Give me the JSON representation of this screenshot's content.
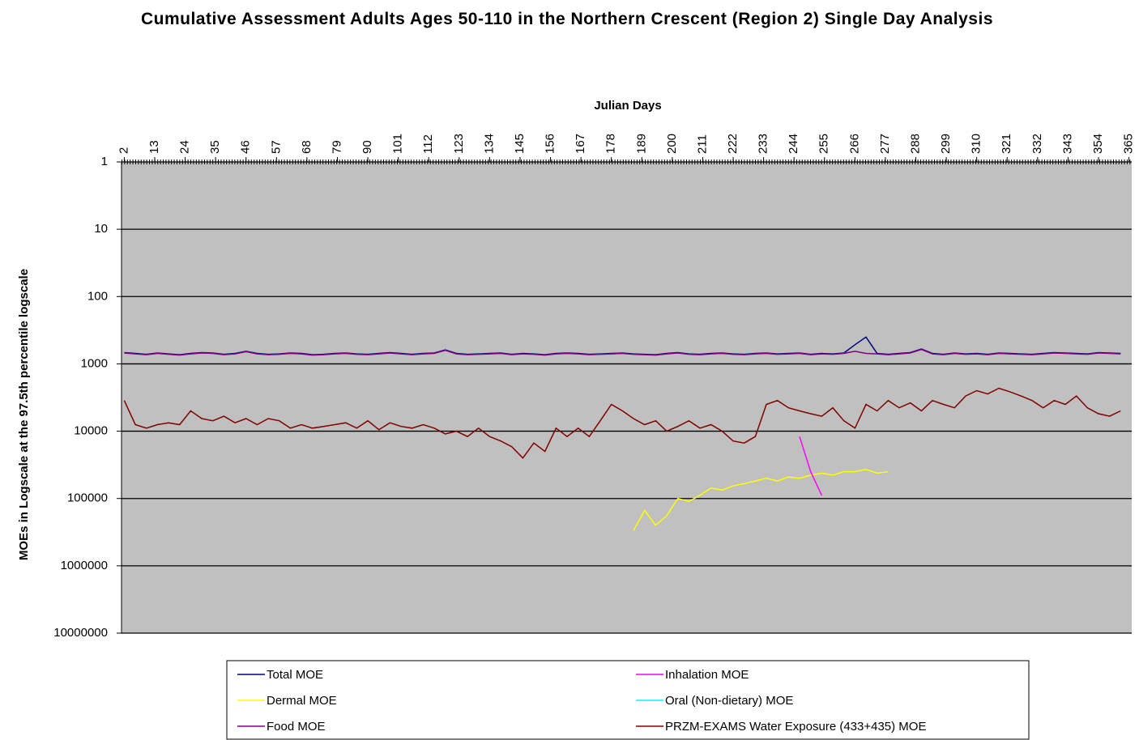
{
  "chart_data": {
    "type": "line",
    "title": "Cumulative Assessment Adults Ages 50-110 in the Northern Crescent (Region 2) Single Day Analysis",
    "x_label": "Julian Days",
    "y_label": "MOEs in Logscale at the 97.5th percentile logscale",
    "xlim": [
      1,
      366
    ],
    "xticks": [
      2,
      13,
      24,
      35,
      46,
      57,
      68,
      79,
      90,
      101,
      112,
      123,
      134,
      145,
      156,
      167,
      178,
      189,
      200,
      211,
      222,
      233,
      244,
      255,
      266,
      277,
      288,
      299,
      310,
      321,
      332,
      343,
      354,
      365
    ],
    "ylim": [
      1,
      10000000
    ],
    "yticks": [
      1,
      10,
      100,
      1000,
      10000,
      100000,
      1000000,
      10000000
    ],
    "log_y": true,
    "y_inverted": true,
    "x_axis_position": "top",
    "grid": true,
    "legend": "bottom",
    "x": [
      2,
      6,
      10,
      14,
      18,
      22,
      26,
      30,
      34,
      38,
      42,
      46,
      50,
      54,
      58,
      62,
      66,
      70,
      74,
      78,
      82,
      86,
      90,
      94,
      98,
      102,
      106,
      110,
      114,
      118,
      122,
      126,
      130,
      134,
      138,
      142,
      146,
      150,
      154,
      158,
      162,
      166,
      170,
      174,
      178,
      182,
      186,
      190,
      194,
      198,
      202,
      206,
      210,
      214,
      218,
      222,
      226,
      230,
      234,
      238,
      242,
      246,
      250,
      254,
      258,
      262,
      266,
      270,
      274,
      278,
      282,
      286,
      290,
      294,
      298,
      302,
      306,
      310,
      314,
      318,
      322,
      326,
      330,
      334,
      338,
      342,
      346,
      350,
      354,
      358,
      362
    ],
    "series": [
      {
        "name": "Total MOE",
        "color": "#000080",
        "values": [
          680,
          700,
          720,
          690,
          710,
          730,
          700,
          680,
          690,
          720,
          700,
          650,
          700,
          720,
          710,
          690,
          700,
          730,
          720,
          700,
          690,
          710,
          720,
          700,
          680,
          700,
          720,
          700,
          690,
          620,
          700,
          720,
          710,
          700,
          690,
          720,
          700,
          710,
          730,
          700,
          690,
          700,
          720,
          710,
          700,
          690,
          710,
          720,
          730,
          700,
          680,
          710,
          720,
          700,
          690,
          710,
          720,
          700,
          690,
          710,
          700,
          690,
          720,
          700,
          710,
          690,
          520,
          400,
          700,
          720,
          700,
          680,
          600,
          700,
          720,
          690,
          710,
          700,
          720,
          690,
          700,
          710,
          720,
          700,
          680,
          690,
          700,
          710,
          680,
          690,
          700
        ]
      },
      {
        "name": "Dermal MOE",
        "color": "#ffff00",
        "values": [
          null,
          null,
          null,
          null,
          null,
          null,
          null,
          null,
          null,
          null,
          null,
          null,
          null,
          null,
          null,
          null,
          null,
          null,
          null,
          null,
          null,
          null,
          null,
          null,
          null,
          null,
          null,
          null,
          null,
          null,
          null,
          null,
          null,
          null,
          null,
          null,
          null,
          null,
          null,
          null,
          null,
          null,
          null,
          null,
          null,
          null,
          300000,
          150000,
          250000,
          180000,
          100000,
          110000,
          90000,
          70000,
          75000,
          65000,
          60000,
          55000,
          50000,
          55000,
          48000,
          50000,
          45000,
          42000,
          45000,
          40000,
          40000,
          37000,
          42000,
          40000,
          null,
          null,
          null,
          null,
          null,
          null,
          null,
          null,
          null,
          null,
          null,
          null,
          null,
          null,
          null,
          null,
          null,
          null,
          null,
          null,
          null
        ]
      },
      {
        "name": "Food MOE",
        "color": "#800080",
        "values": [
          690,
          710,
          730,
          700,
          720,
          740,
          710,
          690,
          700,
          730,
          710,
          660,
          710,
          730,
          720,
          700,
          710,
          740,
          730,
          710,
          700,
          720,
          730,
          710,
          690,
          710,
          730,
          710,
          700,
          630,
          710,
          730,
          720,
          710,
          700,
          730,
          710,
          720,
          740,
          710,
          700,
          710,
          730,
          720,
          710,
          700,
          720,
          730,
          740,
          710,
          690,
          720,
          730,
          710,
          700,
          720,
          730,
          710,
          700,
          720,
          710,
          700,
          730,
          710,
          720,
          700,
          650,
          700,
          710,
          730,
          710,
          690,
          610,
          710,
          730,
          700,
          720,
          710,
          730,
          700,
          710,
          720,
          730,
          710,
          690,
          700,
          710,
          720,
          690,
          700,
          710
        ]
      },
      {
        "name": "Inhalation MOE",
        "color": "#ff00ff",
        "values": [
          null,
          null,
          null,
          null,
          null,
          null,
          null,
          null,
          null,
          null,
          null,
          null,
          null,
          null,
          null,
          null,
          null,
          null,
          null,
          null,
          null,
          null,
          null,
          null,
          null,
          null,
          null,
          null,
          null,
          null,
          null,
          null,
          null,
          null,
          null,
          null,
          null,
          null,
          null,
          null,
          null,
          null,
          null,
          null,
          null,
          null,
          null,
          null,
          null,
          null,
          null,
          null,
          null,
          null,
          null,
          null,
          null,
          null,
          null,
          null,
          null,
          12000,
          40000,
          90000,
          null,
          null,
          null,
          null,
          null,
          null,
          null,
          null,
          null,
          null,
          null,
          null,
          null,
          null,
          null,
          null,
          null,
          null,
          null,
          null,
          null,
          null,
          null,
          null,
          null,
          null,
          null
        ]
      },
      {
        "name": "Oral (Non-dietary) MOE",
        "color": "#00ffff",
        "values": [
          null,
          null,
          null,
          null,
          null,
          null,
          null,
          null,
          null,
          null,
          null,
          null,
          null,
          null,
          null,
          null,
          null,
          null,
          null,
          null,
          null,
          null,
          null,
          null,
          null,
          null,
          null,
          null,
          null,
          null,
          null,
          null,
          null,
          null,
          null,
          null,
          null,
          null,
          null,
          null,
          null,
          null,
          null,
          null,
          null,
          null,
          null,
          null,
          null,
          null,
          null,
          null,
          null,
          null,
          null,
          null,
          null,
          null,
          null,
          null,
          null,
          null,
          null,
          null,
          null,
          null,
          null,
          null,
          null,
          null,
          null,
          null,
          null,
          null,
          null,
          null,
          null,
          null,
          null,
          null,
          null,
          null,
          null,
          null,
          null,
          null,
          null,
          null,
          null,
          null,
          null
        ]
      },
      {
        "name": "PRZM-EXAMS Water Exposure (433+435) MOE",
        "color": "#800000",
        "values": [
          3500,
          8000,
          9000,
          8000,
          7500,
          8000,
          5000,
          6500,
          7000,
          6000,
          7500,
          6500,
          8000,
          6500,
          7000,
          9000,
          8000,
          9000,
          8500,
          8000,
          7500,
          9000,
          7000,
          9500,
          7500,
          8500,
          9000,
          8000,
          9000,
          11000,
          10000,
          12000,
          9000,
          12000,
          14000,
          17000,
          25000,
          15000,
          20000,
          9000,
          12000,
          9000,
          12000,
          7000,
          4000,
          5000,
          6500,
          8000,
          7000,
          10000,
          8500,
          7000,
          9000,
          8000,
          10000,
          14000,
          15000,
          12000,
          4000,
          3500,
          4500,
          5000,
          5500,
          6000,
          4500,
          7000,
          9000,
          4000,
          5000,
          3500,
          4500,
          3800,
          5000,
          3500,
          4000,
          4500,
          3000,
          2500,
          2800,
          2300,
          2600,
          3000,
          3500,
          4500,
          3500,
          4000,
          3000,
          4500,
          5500,
          6000,
          5000
        ]
      }
    ]
  }
}
